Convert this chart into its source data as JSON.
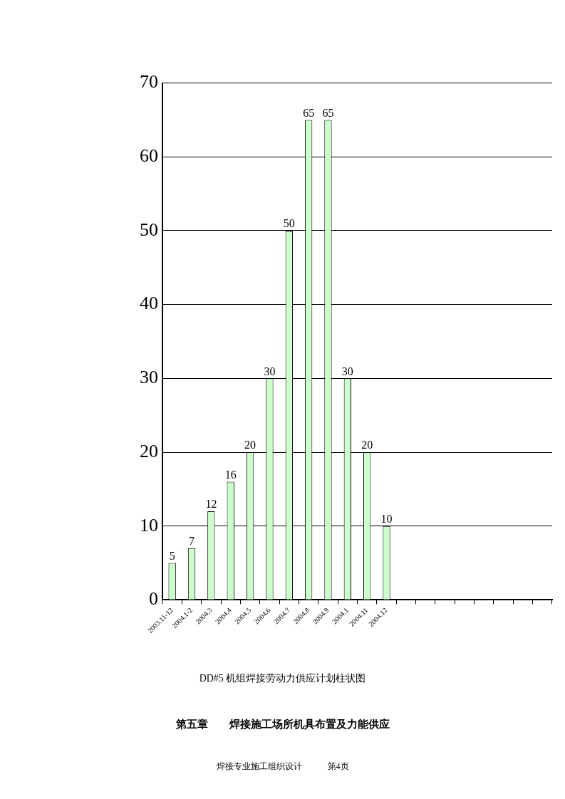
{
  "chart_data": {
    "type": "bar",
    "title": "DD#5 机组焊接劳动力供应计划柱状图",
    "categories": [
      "2003.11-12",
      "2004.1-2",
      "2004.3",
      "2004.4",
      "2004.5",
      "2004.6",
      "2004.7",
      "2004.8",
      "2004.9",
      "2004.1",
      "2004.11",
      "2004.12",
      null,
      null,
      null,
      null,
      null,
      null,
      null,
      null
    ],
    "values": [
      5,
      7,
      12,
      16,
      20,
      30,
      50,
      65,
      65,
      30,
      20,
      10,
      null,
      null,
      null,
      null,
      null,
      null,
      null,
      null
    ],
    "color": "#ccffcc",
    "ylim": [
      0,
      70
    ],
    "yticks": [
      0,
      10,
      20,
      30,
      40,
      50,
      60,
      70
    ],
    "grid": "y",
    "data_labels": true,
    "annotations": [
      "第五章　　焊接施工场所机具布置及力能供应",
      "焊接专业施工组织设计　　　第4页"
    ]
  }
}
